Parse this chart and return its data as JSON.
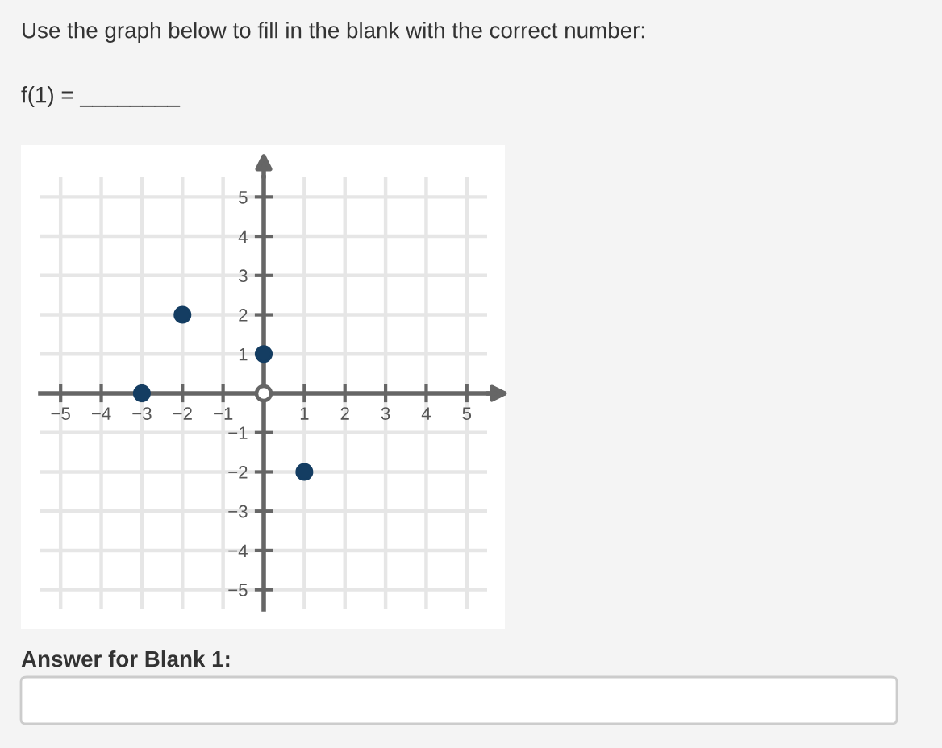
{
  "chart_data": {
    "type": "scatter",
    "title": "Use the graph below to fill in the blank with the correct number:",
    "subtitle": "f(1) = ________",
    "annotations": [
      "Answer for Blank 1:"
    ],
    "x": [
      -3,
      -2,
      0,
      1
    ],
    "values": [
      0,
      2,
      1,
      -2
    ],
    "color": "#143d62",
    "marker": "circle",
    "xlim": [
      -5.5,
      5.5
    ],
    "ylim": [
      -5.5,
      5.5
    ],
    "xticks": [
      {
        "value": -5,
        "label": "−5"
      },
      {
        "value": -4,
        "label": "−4"
      },
      {
        "value": -3,
        "label": "−3"
      },
      {
        "value": -2,
        "label": "−2"
      },
      {
        "value": -1,
        "label": "−1"
      },
      1,
      2,
      3,
      4,
      5
    ],
    "yticks": [
      5,
      4,
      3,
      2,
      1,
      {
        "value": -1,
        "label": "−1"
      },
      {
        "value": -2,
        "label": "−2"
      },
      {
        "value": -3,
        "label": "−3"
      },
      {
        "value": -4,
        "label": "−4"
      },
      {
        "value": -5,
        "label": "−5"
      }
    ],
    "grid": true
  }
}
